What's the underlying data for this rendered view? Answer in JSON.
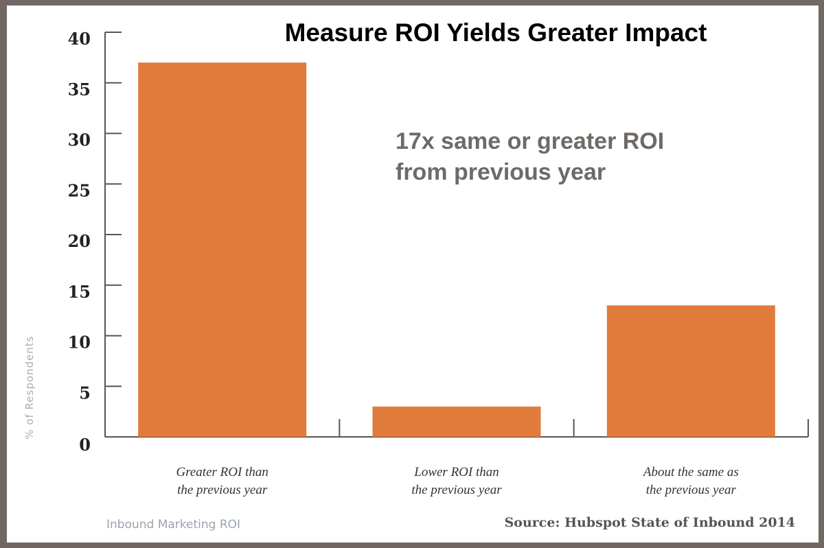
{
  "chart_data": {
    "type": "bar",
    "title": "Measure ROI Yields Greater Impact",
    "annotation": [
      "17x same or greater ROI",
      "from previous year"
    ],
    "ylabel": "% of Respondents",
    "xlabel": "",
    "categories": [
      [
        "Greater ROI than",
        "the previous year"
      ],
      [
        "Lower ROI than",
        "the previous year"
      ],
      [
        "About the same as",
        "the previous year"
      ]
    ],
    "values": [
      37,
      3,
      13
    ],
    "ylim": [
      0,
      40
    ],
    "yticks": [
      0,
      5,
      10,
      15,
      20,
      25,
      30,
      35,
      40
    ],
    "grid": false,
    "bar_color": "#e07b3c",
    "footer_left": "Inbound Marketing ROI",
    "source": "Source: Hubspot State of Inbound 2014"
  }
}
